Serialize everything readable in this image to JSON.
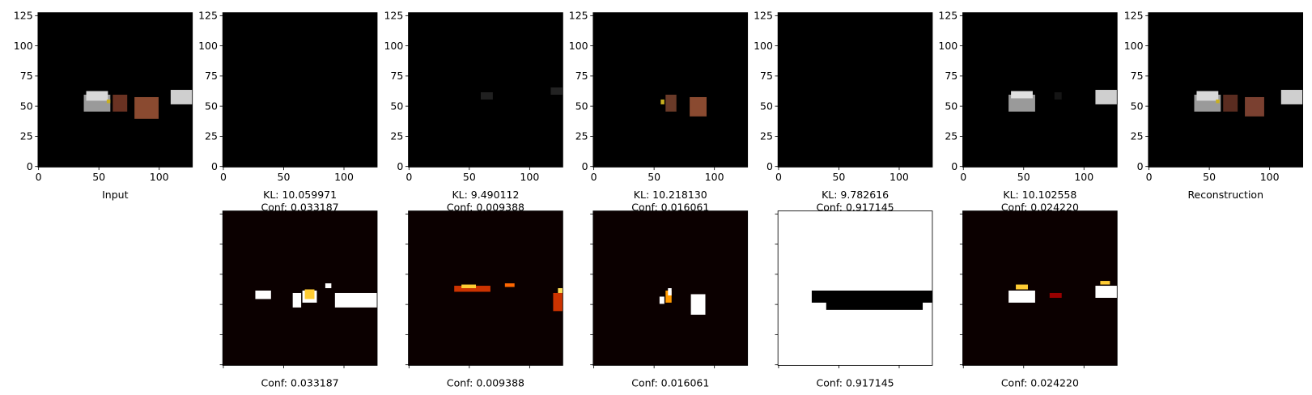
{
  "xticks": [
    0,
    50,
    100
  ],
  "yticks": [
    0,
    25,
    50,
    75,
    100,
    125
  ],
  "xlim": [
    -0.5,
    127.5
  ],
  "ylim": [
    127.5,
    -0.5
  ],
  "top_panels": [
    {
      "label": "Input"
    },
    {
      "kl": "KL: 10.059971",
      "conf": "Conf: 0.033187"
    },
    {
      "kl": "KL: 9.490112",
      "conf": "Conf: 0.009388"
    },
    {
      "kl": "KL: 10.218130",
      "conf": "Conf: 0.016061"
    },
    {
      "kl": "KL: 9.782616",
      "conf": "Conf: 0.917145"
    },
    {
      "kl": "KL: 10.102558",
      "conf": "Conf: 0.024220"
    },
    {
      "label": "Reconstruction"
    }
  ],
  "mask_panels": [
    {
      "label": "Conf: 0.033187"
    },
    {
      "label": "Conf: 0.009388"
    },
    {
      "label": "Conf: 0.016061"
    },
    {
      "label": "Conf: 0.917145"
    },
    {
      "label": "Conf: 0.024220"
    }
  ]
}
